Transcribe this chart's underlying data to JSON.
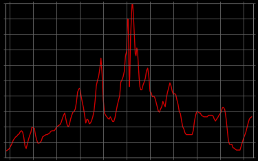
{
  "background_color": "#000000",
  "line_color": "#cc0000",
  "grid_color": "#666666",
  "line_width": 1.0,
  "xlim": [
    1954,
    2007
  ],
  "ylim": [
    0,
    20
  ],
  "x_tick_spacing": 5,
  "y_tick_spacing": 2,
  "data": [
    [
      1954.25,
      0.9
    ],
    [
      1954.5,
      1.0
    ],
    [
      1954.75,
      1.1
    ],
    [
      1955.0,
      1.3
    ],
    [
      1955.25,
      1.6
    ],
    [
      1955.5,
      1.9
    ],
    [
      1955.75,
      2.3
    ],
    [
      1956.0,
      2.5
    ],
    [
      1956.25,
      2.7
    ],
    [
      1956.5,
      2.8
    ],
    [
      1956.75,
      3.0
    ],
    [
      1957.0,
      3.1
    ],
    [
      1957.25,
      3.4
    ],
    [
      1957.5,
      3.5
    ],
    [
      1957.75,
      3.3
    ],
    [
      1958.0,
      2.6
    ],
    [
      1958.25,
      1.5
    ],
    [
      1958.5,
      1.2
    ],
    [
      1958.75,
      1.8
    ],
    [
      1959.0,
      2.4
    ],
    [
      1959.25,
      2.9
    ],
    [
      1959.5,
      3.3
    ],
    [
      1959.75,
      4.0
    ],
    [
      1960.0,
      3.9
    ],
    [
      1960.25,
      3.8
    ],
    [
      1960.5,
      2.9
    ],
    [
      1960.75,
      2.3
    ],
    [
      1961.0,
      1.9
    ],
    [
      1961.25,
      1.9
    ],
    [
      1961.5,
      2.0
    ],
    [
      1961.75,
      2.2
    ],
    [
      1962.0,
      2.7
    ],
    [
      1962.25,
      2.8
    ],
    [
      1962.5,
      2.9
    ],
    [
      1962.75,
      3.0
    ],
    [
      1963.0,
      3.0
    ],
    [
      1963.25,
      3.1
    ],
    [
      1963.5,
      3.2
    ],
    [
      1963.75,
      3.4
    ],
    [
      1964.0,
      3.5
    ],
    [
      1964.25,
      3.5
    ],
    [
      1964.5,
      3.5
    ],
    [
      1964.75,
      3.7
    ],
    [
      1965.0,
      4.0
    ],
    [
      1965.25,
      4.1
    ],
    [
      1965.5,
      4.2
    ],
    [
      1965.75,
      4.3
    ],
    [
      1966.0,
      4.6
    ],
    [
      1966.25,
      5.1
    ],
    [
      1966.5,
      5.5
    ],
    [
      1966.75,
      5.8
    ],
    [
      1967.0,
      5.0
    ],
    [
      1967.25,
      4.3
    ],
    [
      1967.5,
      4.0
    ],
    [
      1967.75,
      4.3
    ],
    [
      1968.0,
      5.0
    ],
    [
      1968.25,
      5.5
    ],
    [
      1968.5,
      5.9
    ],
    [
      1968.75,
      6.0
    ],
    [
      1969.0,
      6.3
    ],
    [
      1969.25,
      7.2
    ],
    [
      1969.5,
      8.5
    ],
    [
      1969.75,
      8.9
    ],
    [
      1970.0,
      9.0
    ],
    [
      1970.25,
      8.0
    ],
    [
      1970.5,
      7.2
    ],
    [
      1970.75,
      6.5
    ],
    [
      1971.0,
      5.5
    ],
    [
      1971.25,
      4.5
    ],
    [
      1971.5,
      5.0
    ],
    [
      1971.75,
      4.9
    ],
    [
      1972.0,
      4.4
    ],
    [
      1972.25,
      4.5
    ],
    [
      1972.5,
      4.8
    ],
    [
      1972.75,
      5.3
    ],
    [
      1973.0,
      6.0
    ],
    [
      1973.25,
      7.4
    ],
    [
      1973.5,
      9.3
    ],
    [
      1973.75,
      10.0
    ],
    [
      1974.0,
      10.5
    ],
    [
      1974.25,
      11.5
    ],
    [
      1974.5,
      12.9
    ],
    [
      1974.75,
      10.8
    ],
    [
      1975.0,
      7.5
    ],
    [
      1975.25,
      5.8
    ],
    [
      1975.5,
      5.5
    ],
    [
      1975.75,
      5.3
    ],
    [
      1976.0,
      5.1
    ],
    [
      1976.25,
      5.0
    ],
    [
      1976.5,
      5.3
    ],
    [
      1976.75,
      5.0
    ],
    [
      1977.0,
      4.7
    ],
    [
      1977.25,
      4.7
    ],
    [
      1977.5,
      5.2
    ],
    [
      1977.75,
      6.0
    ],
    [
      1978.0,
      6.8
    ],
    [
      1978.25,
      7.4
    ],
    [
      1978.5,
      8.0
    ],
    [
      1978.75,
      9.8
    ],
    [
      1979.0,
      10.1
    ],
    [
      1979.25,
      10.5
    ],
    [
      1979.5,
      11.2
    ],
    [
      1979.75,
      13.2
    ],
    [
      1980.0,
      13.8
    ],
    [
      1980.08,
      16.0
    ],
    [
      1980.17,
      17.6
    ],
    [
      1980.25,
      18.0
    ],
    [
      1980.33,
      17.6
    ],
    [
      1980.42,
      15.0
    ],
    [
      1980.5,
      10.8
    ],
    [
      1980.58,
      9.2
    ],
    [
      1980.67,
      10.5
    ],
    [
      1980.75,
      13.0
    ],
    [
      1980.83,
      15.5
    ],
    [
      1980.92,
      16.8
    ],
    [
      1981.0,
      17.8
    ],
    [
      1981.08,
      19.1
    ],
    [
      1981.17,
      19.9
    ],
    [
      1981.25,
      20.1
    ],
    [
      1981.33,
      19.5
    ],
    [
      1981.42,
      18.6
    ],
    [
      1981.5,
      17.8
    ],
    [
      1981.67,
      15.5
    ],
    [
      1981.83,
      13.5
    ],
    [
      1982.0,
      13.2
    ],
    [
      1982.17,
      14.2
    ],
    [
      1982.33,
      13.8
    ],
    [
      1982.5,
      12.0
    ],
    [
      1982.67,
      10.3
    ],
    [
      1982.83,
      9.2
    ],
    [
      1983.0,
      8.8
    ],
    [
      1983.25,
      8.8
    ],
    [
      1983.5,
      9.4
    ],
    [
      1983.75,
      9.8
    ],
    [
      1984.0,
      10.3
    ],
    [
      1984.25,
      11.3
    ],
    [
      1984.5,
      11.6
    ],
    [
      1984.75,
      10.5
    ],
    [
      1985.0,
      8.6
    ],
    [
      1985.25,
      8.4
    ],
    [
      1985.5,
      7.9
    ],
    [
      1985.75,
      8.0
    ],
    [
      1986.0,
      7.8
    ],
    [
      1986.25,
      7.3
    ],
    [
      1986.5,
      6.7
    ],
    [
      1986.75,
      6.1
    ],
    [
      1987.0,
      5.9
    ],
    [
      1987.25,
      6.3
    ],
    [
      1987.5,
      6.6
    ],
    [
      1987.75,
      7.3
    ],
    [
      1988.0,
      6.9
    ],
    [
      1988.25,
      6.6
    ],
    [
      1988.5,
      7.8
    ],
    [
      1988.75,
      8.5
    ],
    [
      1989.0,
      9.1
    ],
    [
      1989.25,
      9.7
    ],
    [
      1989.5,
      9.3
    ],
    [
      1989.75,
      8.6
    ],
    [
      1990.0,
      8.2
    ],
    [
      1990.25,
      8.3
    ],
    [
      1990.5,
      8.2
    ],
    [
      1990.75,
      7.5
    ],
    [
      1991.0,
      6.9
    ],
    [
      1991.25,
      6.0
    ],
    [
      1991.5,
      5.7
    ],
    [
      1991.75,
      4.8
    ],
    [
      1992.0,
      4.0
    ],
    [
      1992.25,
      3.7
    ],
    [
      1992.5,
      3.2
    ],
    [
      1992.75,
      3.0
    ],
    [
      1993.0,
      3.0
    ],
    [
      1993.25,
      3.0
    ],
    [
      1993.5,
      3.0
    ],
    [
      1993.75,
      3.0
    ],
    [
      1994.0,
      3.0
    ],
    [
      1994.25,
      3.5
    ],
    [
      1994.5,
      4.7
    ],
    [
      1994.75,
      5.5
    ],
    [
      1995.0,
      6.0
    ],
    [
      1995.25,
      6.0
    ],
    [
      1995.5,
      5.8
    ],
    [
      1995.75,
      5.8
    ],
    [
      1996.0,
      5.5
    ],
    [
      1996.25,
      5.4
    ],
    [
      1996.5,
      5.3
    ],
    [
      1996.75,
      5.3
    ],
    [
      1997.0,
      5.3
    ],
    [
      1997.25,
      5.3
    ],
    [
      1997.5,
      5.5
    ],
    [
      1997.75,
      5.5
    ],
    [
      1998.0,
      5.5
    ],
    [
      1998.25,
      5.5
    ],
    [
      1998.5,
      5.4
    ],
    [
      1998.75,
      5.0
    ],
    [
      1999.0,
      4.75
    ],
    [
      1999.25,
      5.0
    ],
    [
      1999.5,
      5.2
    ],
    [
      1999.75,
      5.5
    ],
    [
      2000.0,
      5.7
    ],
    [
      2000.25,
      6.0
    ],
    [
      2000.5,
      6.5
    ],
    [
      2000.75,
      6.5
    ],
    [
      2001.0,
      6.2
    ],
    [
      2001.25,
      5.2
    ],
    [
      2001.5,
      3.8
    ],
    [
      2001.75,
      2.3
    ],
    [
      2002.0,
      1.75
    ],
    [
      2002.25,
      1.75
    ],
    [
      2002.5,
      1.75
    ],
    [
      2002.75,
      1.3
    ],
    [
      2003.0,
      1.25
    ],
    [
      2003.25,
      1.1
    ],
    [
      2003.5,
      1.0
    ],
    [
      2003.75,
      1.0
    ],
    [
      2004.0,
      1.0
    ],
    [
      2004.25,
      1.0
    ],
    [
      2004.5,
      1.5
    ],
    [
      2004.75,
      2.0
    ],
    [
      2005.0,
      2.5
    ],
    [
      2005.25,
      2.9
    ],
    [
      2005.5,
      3.3
    ],
    [
      2005.75,
      3.9
    ],
    [
      2006.0,
      4.5
    ],
    [
      2006.25,
      5.0
    ],
    [
      2006.5,
      5.2
    ],
    [
      2006.75,
      5.3
    ]
  ]
}
